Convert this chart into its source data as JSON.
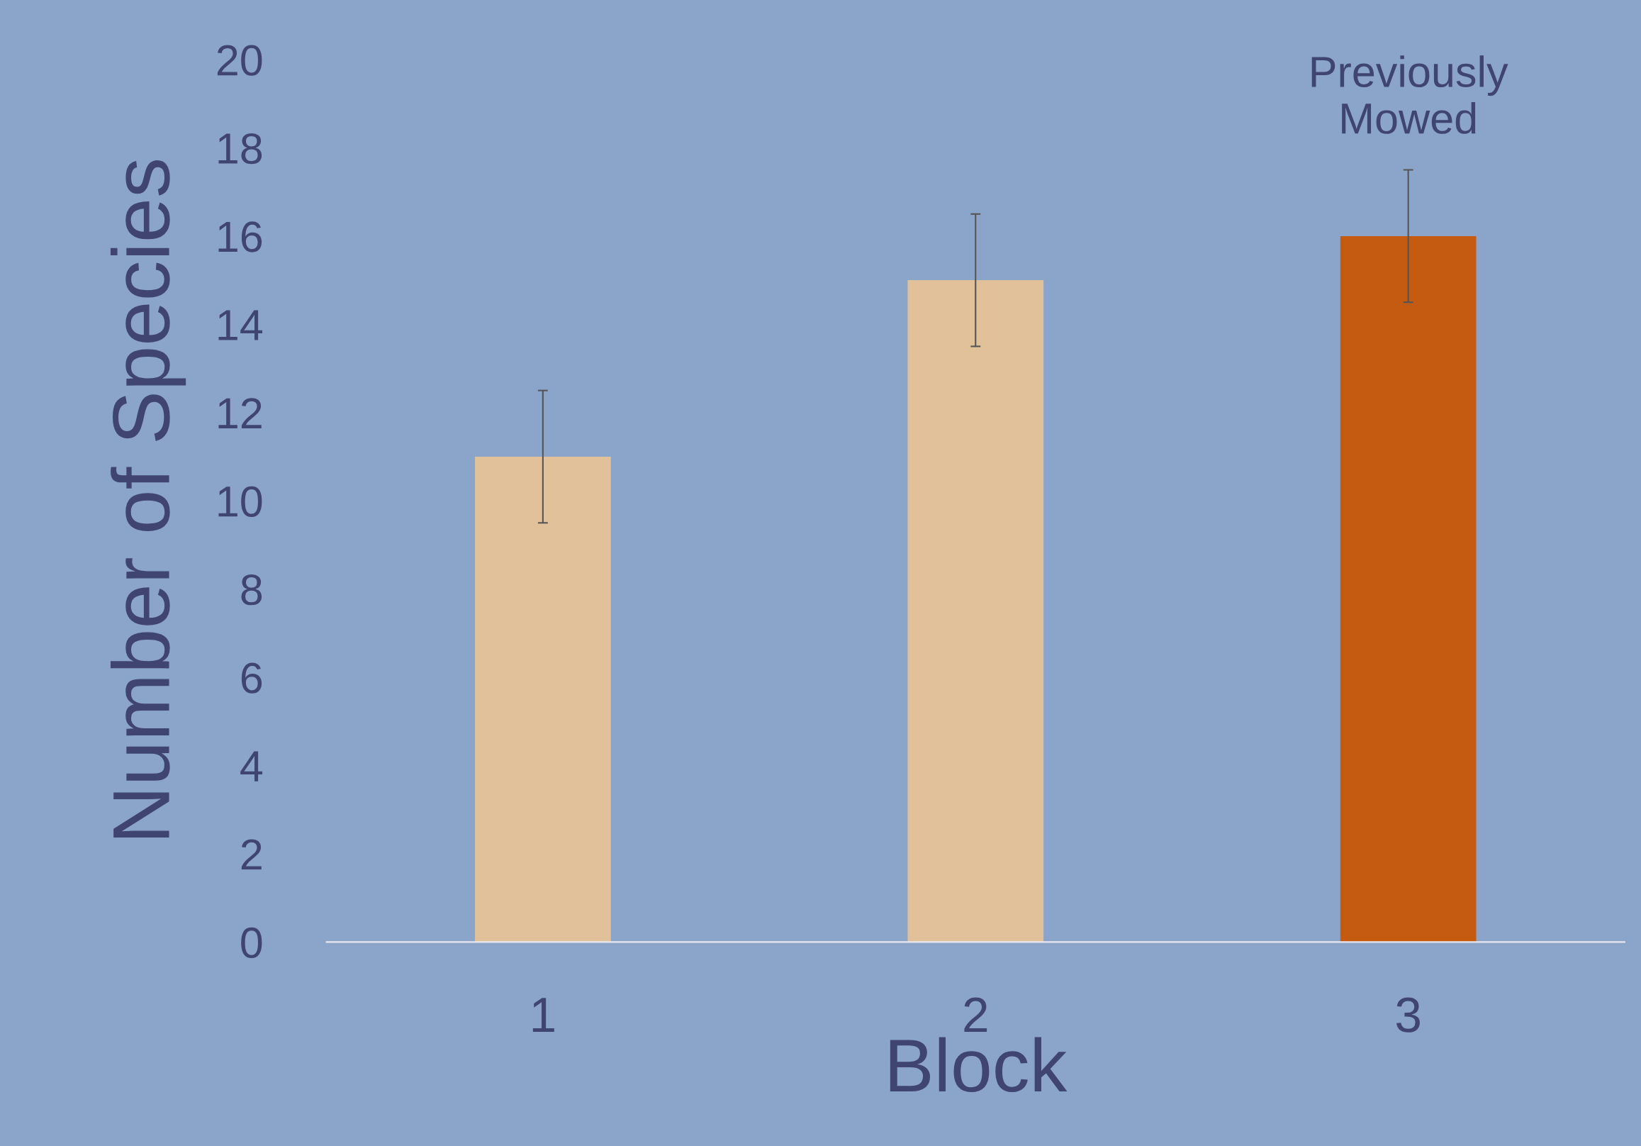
{
  "chart_data": {
    "type": "bar",
    "xlabel": "Block",
    "ylabel": "Number of Species",
    "categories": [
      "1",
      "2",
      "3"
    ],
    "values": [
      11,
      15,
      16
    ],
    "colors": [
      "#e0c199",
      "#e0c199",
      "#c55a11"
    ],
    "errors": [
      1.5,
      1.5,
      1.5
    ],
    "ylim": [
      0,
      20
    ],
    "yticks": [
      0,
      2,
      4,
      6,
      8,
      10,
      12,
      14,
      16,
      18,
      20
    ],
    "grid": false,
    "legend": false,
    "annotations": [
      {
        "text": "Previously\nMowed",
        "x": "3",
        "y": 16
      }
    ]
  }
}
